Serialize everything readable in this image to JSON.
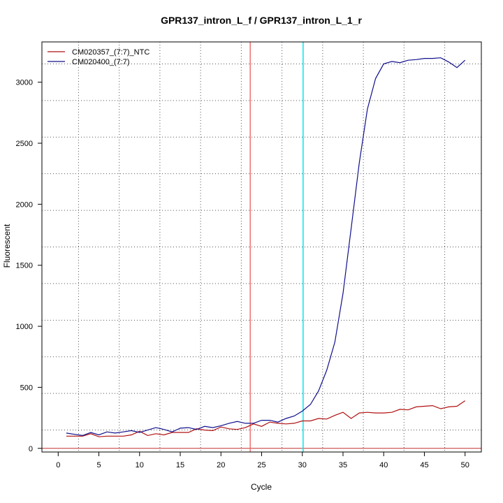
{
  "chart_data": {
    "type": "line",
    "title": "GPR137_intron_L_f / GPR137_intron_L_1_r",
    "xlabel": "Cycle",
    "ylabel": "Fluorescent",
    "xlim": [
      -2,
      52
    ],
    "ylim": [
      -30,
      3330
    ],
    "x_ticks": [
      0,
      5,
      10,
      15,
      20,
      25,
      30,
      35,
      40,
      45,
      50
    ],
    "y_ticks": [
      0,
      500,
      1000,
      1500,
      2000,
      2500,
      3000
    ],
    "grid": "dotted",
    "grid_x": [
      2.5,
      7.5,
      12.5,
      17.5,
      22.5,
      27.5,
      32.5,
      37.5,
      42.5,
      47.5
    ],
    "grid_y": [
      150,
      450,
      750,
      1050,
      1350,
      1650,
      1950,
      2250,
      2550,
      2850,
      3150
    ],
    "legend_position": "top-left",
    "series": [
      {
        "name": "CM020357_(7:7)_NTC",
        "color": "#b01010",
        "x": [
          1,
          2,
          3,
          4,
          5,
          6,
          7,
          8,
          9,
          10,
          11,
          12,
          13,
          14,
          15,
          16,
          17,
          18,
          19,
          20,
          21,
          22,
          23,
          24,
          25,
          26,
          27,
          28,
          29,
          30,
          31,
          32,
          33,
          34,
          35,
          36,
          37,
          38,
          39,
          40,
          41,
          42,
          43,
          44,
          45,
          46,
          47,
          48,
          49,
          50
        ],
        "y": [
          100,
          100,
          100,
          120,
          95,
          100,
          100,
          100,
          110,
          140,
          105,
          120,
          110,
          130,
          130,
          130,
          160,
          150,
          145,
          175,
          160,
          155,
          170,
          200,
          180,
          215,
          205,
          200,
          205,
          225,
          225,
          245,
          240,
          270,
          295,
          245,
          290,
          295,
          290,
          290,
          295,
          320,
          315,
          340,
          345,
          350,
          325,
          340,
          345,
          390
        ]
      },
      {
        "name": "CM020400_(7:7)",
        "color": "#10108c",
        "x": [
          1,
          2,
          3,
          4,
          5,
          6,
          7,
          8,
          9,
          10,
          11,
          12,
          13,
          14,
          15,
          16,
          17,
          18,
          19,
          20,
          21,
          22,
          23,
          24,
          25,
          26,
          27,
          28,
          29,
          30,
          31,
          32,
          33,
          34,
          35,
          36,
          37,
          38,
          39,
          40,
          41,
          42,
          43,
          44,
          45,
          46,
          47,
          48,
          49,
          50
        ],
        "y": [
          125,
          115,
          105,
          130,
          110,
          135,
          125,
          135,
          145,
          130,
          150,
          170,
          155,
          135,
          165,
          170,
          155,
          180,
          170,
          185,
          205,
          220,
          205,
          205,
          230,
          230,
          215,
          245,
          265,
          305,
          360,
          470,
          640,
          870,
          1270,
          1800,
          2340,
          2780,
          3030,
          3150,
          3170,
          3160,
          3180,
          3185,
          3195,
          3195,
          3200,
          3165,
          3120,
          3180
        ]
      }
    ],
    "thresholds": [
      {
        "x": 23.6,
        "color": "#ee7070"
      },
      {
        "x": 30.1,
        "color": "#00e5ee"
      }
    ],
    "baseline": {
      "y": 0,
      "color": "#c03030"
    }
  }
}
